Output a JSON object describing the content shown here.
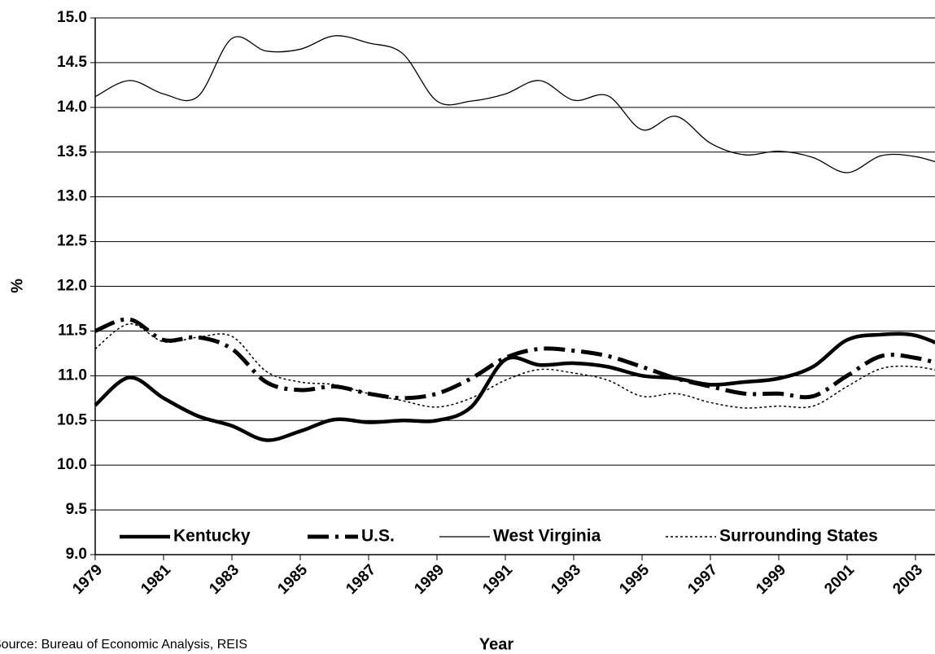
{
  "chart_data": {
    "type": "line",
    "x_label": "Year",
    "y_label": "%",
    "source": "Source: Bureau of Economic Analysis, REIS",
    "x": [
      1979,
      1980,
      1981,
      1982,
      1983,
      1984,
      1985,
      1986,
      1987,
      1988,
      1989,
      1990,
      1991,
      1992,
      1993,
      1994,
      1995,
      1996,
      1997,
      1998,
      1999,
      2000,
      2001,
      2002,
      2003,
      2004
    ],
    "series": [
      {
        "name": "Kentucky",
        "color": "#000000",
        "width": 4.5,
        "dash": "none",
        "values": [
          10.67,
          10.98,
          10.75,
          10.55,
          10.44,
          10.28,
          10.38,
          10.51,
          10.48,
          10.5,
          10.5,
          10.65,
          11.18,
          11.12,
          11.14,
          11.1,
          11.0,
          10.97,
          10.9,
          10.93,
          10.97,
          11.1,
          11.4,
          11.46,
          11.45,
          11.3
        ]
      },
      {
        "name": "U.S.",
        "color": "#000000",
        "width": 5,
        "dash": "26 8 4 8",
        "values": [
          11.5,
          11.63,
          11.4,
          11.43,
          11.3,
          10.93,
          10.84,
          10.88,
          10.8,
          10.75,
          10.8,
          10.97,
          11.2,
          11.3,
          11.28,
          11.22,
          11.1,
          10.97,
          10.88,
          10.8,
          10.8,
          10.77,
          11.0,
          11.22,
          11.2,
          11.1
        ]
      },
      {
        "name": "West Virginia",
        "color": "#000000",
        "width": 1.3,
        "dash": "none",
        "values": [
          14.12,
          14.3,
          14.15,
          14.12,
          14.77,
          14.63,
          14.65,
          14.8,
          14.72,
          14.6,
          14.07,
          14.07,
          14.15,
          14.3,
          14.08,
          14.13,
          13.75,
          13.9,
          13.6,
          13.47,
          13.51,
          13.44,
          13.27,
          13.46,
          13.45,
          13.34
        ]
      },
      {
        "name": "Surrounding States",
        "color": "#000000",
        "width": 1.5,
        "dash": "3 3",
        "values": [
          11.3,
          11.58,
          11.38,
          11.43,
          11.44,
          11.05,
          10.93,
          10.9,
          10.8,
          10.72,
          10.65,
          10.75,
          10.95,
          11.07,
          11.03,
          10.95,
          10.77,
          10.8,
          10.7,
          10.64,
          10.66,
          10.66,
          10.88,
          11.08,
          11.1,
          11.03
        ]
      }
    ],
    "xlim": [
      1979,
      2004
    ],
    "xticks": [
      1979,
      1981,
      1983,
      1985,
      1987,
      1989,
      1991,
      1993,
      1995,
      1997,
      1999,
      2001,
      2003
    ],
    "ylim": [
      9,
      15
    ],
    "yticks": [
      {
        "value": 9,
        "label": "9.0"
      },
      {
        "value": 9.5,
        "label": "9.5"
      },
      {
        "value": 10,
        "label": "10.0"
      },
      {
        "value": 10.5,
        "label": "10.5"
      },
      {
        "value": 11,
        "label": "11.0"
      },
      {
        "value": 11.5,
        "label": "11.5"
      },
      {
        "value": 12,
        "label": "12.0"
      },
      {
        "value": 12.5,
        "label": "12.5"
      },
      {
        "value": 13,
        "label": "13.0"
      },
      {
        "value": 13.5,
        "label": "13.5"
      },
      {
        "value": 14,
        "label": "14.0"
      },
      {
        "value": 14.5,
        "label": "14.5"
      },
      {
        "value": 15,
        "label": "15.0"
      }
    ],
    "grid": true,
    "legend": "bottom"
  }
}
